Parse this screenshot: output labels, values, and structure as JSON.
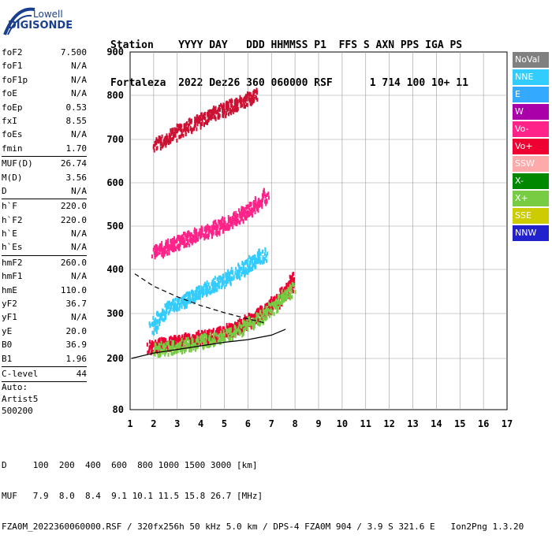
{
  "logo": {
    "brand": "Lowell",
    "name": "DIGISONDE"
  },
  "header": {
    "line1": "Station    YYYY DAY   DDD HHMMSS P1  FFS S AXN PPS IGA PS",
    "line2": "Fortaleza  2022 Dez26 360 060000 RSF      1 714 100 10+ 11"
  },
  "params": [
    {
      "label": "foF2",
      "value": "7.500"
    },
    {
      "label": "foF1",
      "value": "N/A"
    },
    {
      "label": "foF1p",
      "value": "N/A"
    },
    {
      "label": "foE",
      "value": "N/A"
    },
    {
      "label": "foEp",
      "value": "0.53"
    },
    {
      "label": "fxI",
      "value": "8.55"
    },
    {
      "label": "foEs",
      "value": "N/A"
    },
    {
      "label": "fmin",
      "value": "1.70"
    },
    {
      "sep": true
    },
    {
      "label": "MUF(D)",
      "value": "26.74"
    },
    {
      "label": "M(D)",
      "value": "3.56"
    },
    {
      "label": "D",
      "value": "N/A"
    },
    {
      "sep": true
    },
    {
      "label": "h`F",
      "value": "220.0"
    },
    {
      "label": "h`F2",
      "value": "220.0"
    },
    {
      "label": "h`E",
      "value": "N/A"
    },
    {
      "label": "h`Es",
      "value": "N/A"
    },
    {
      "sep": true
    },
    {
      "label": "hmF2",
      "value": "260.0"
    },
    {
      "label": "hmF1",
      "value": "N/A"
    },
    {
      "label": "hmE",
      "value": "110.0"
    },
    {
      "label": "yF2",
      "value": "36.7"
    },
    {
      "label": "yF1",
      "value": "N/A"
    },
    {
      "label": "yE",
      "value": "20.0"
    },
    {
      "label": "B0",
      "value": "36.9"
    },
    {
      "label": "B1",
      "value": "1.96"
    },
    {
      "sep": true
    },
    {
      "label": "C-level",
      "value": "44"
    },
    {
      "sep": true
    }
  ],
  "auto": [
    "Auto:",
    "Artist5",
    "500200"
  ],
  "legend": [
    {
      "label": "NoVal",
      "color": "#808080"
    },
    {
      "label": "NNE",
      "color": "#33ccff"
    },
    {
      "label": "E",
      "color": "#33aaff"
    },
    {
      "label": "W",
      "color": "#aa00aa"
    },
    {
      "label": "Vo-",
      "color": "#ff2288"
    },
    {
      "label": "Vo+",
      "color": "#ee0033"
    },
    {
      "label": "SSW",
      "color": "#ffaaaa"
    },
    {
      "label": "X-",
      "color": "#008800"
    },
    {
      "label": "X+",
      "color": "#77cc44"
    },
    {
      "label": "SSE",
      "color": "#cccc00"
    },
    {
      "label": "NNW",
      "color": "#2222cc"
    }
  ],
  "footer": {
    "line1": "D     100  200  400  600  800 1000 1500 3000 [km]",
    "line2": "MUF   7.9  8.0  8.4  9.1 10.1 11.5 15.8 26.7 [MHz]",
    "line3": "FZA0M_2022360060000.RSF / 320fx256h 50 kHz 5.0 km / DPS-4 FZA0M 904 / 3.9 S 321.6 E   Ion2Png 1.3.20"
  },
  "chart_data": {
    "type": "scatter",
    "x_ticks": [
      "1",
      "2",
      "3",
      "4",
      "5",
      "6",
      "7",
      "8",
      "9",
      "10",
      "11",
      "12",
      "13",
      "14",
      "15",
      "16",
      "17"
    ],
    "y_ticks": [
      "80",
      "200",
      "300",
      "400",
      "500",
      "600",
      "700",
      "800",
      "900"
    ],
    "xlim": [
      1,
      17
    ],
    "y_tick_values": [
      80,
      200,
      300,
      400,
      500,
      600,
      700,
      800,
      900
    ],
    "grid": true,
    "legend_position": "right",
    "traces": [
      {
        "name": "Vo+",
        "color": "#ee0033",
        "points": [
          [
            1.8,
            228
          ],
          [
            2.2,
            232
          ],
          [
            2.6,
            236
          ],
          [
            3.0,
            240
          ],
          [
            3.4,
            244
          ],
          [
            3.8,
            248
          ],
          [
            4.2,
            252
          ],
          [
            4.6,
            256
          ],
          [
            5.0,
            262
          ],
          [
            5.4,
            270
          ],
          [
            5.8,
            280
          ],
          [
            6.2,
            292
          ],
          [
            6.6,
            306
          ],
          [
            7.0,
            322
          ],
          [
            7.4,
            340
          ],
          [
            7.7,
            360
          ],
          [
            7.9,
            385
          ]
        ]
      },
      {
        "name": "Vo-",
        "color": "#ff2288",
        "points": [
          [
            2.0,
            440
          ],
          [
            2.4,
            452
          ],
          [
            2.8,
            462
          ],
          [
            3.2,
            470
          ],
          [
            3.6,
            478
          ],
          [
            4.0,
            486
          ],
          [
            4.4,
            494
          ],
          [
            4.8,
            504
          ],
          [
            5.2,
            514
          ],
          [
            5.6,
            526
          ],
          [
            6.0,
            540
          ],
          [
            6.4,
            556
          ],
          [
            6.8,
            575
          ]
        ]
      },
      {
        "name": "NNE",
        "color": "#33ccff",
        "points": [
          [
            1.9,
            270
          ],
          [
            2.3,
            300
          ],
          [
            2.7,
            320
          ],
          [
            3.1,
            330
          ],
          [
            3.5,
            340
          ],
          [
            3.9,
            350
          ],
          [
            4.3,
            360
          ],
          [
            4.7,
            372
          ],
          [
            5.1,
            384
          ],
          [
            5.5,
            396
          ],
          [
            5.9,
            410
          ],
          [
            6.3,
            424
          ],
          [
            6.7,
            440
          ]
        ]
      },
      {
        "name": "X+",
        "color": "#77cc44",
        "points": [
          [
            2.0,
            222
          ],
          [
            2.6,
            226
          ],
          [
            3.2,
            232
          ],
          [
            3.8,
            238
          ],
          [
            4.4,
            246
          ],
          [
            5.0,
            254
          ],
          [
            5.6,
            266
          ],
          [
            6.2,
            284
          ],
          [
            6.8,
            306
          ],
          [
            7.4,
            334
          ],
          [
            7.9,
            362
          ]
        ]
      },
      {
        "name": "Vo+ upper",
        "color": "#cc1133",
        "points": [
          [
            2.0,
            690
          ],
          [
            2.5,
            705
          ],
          [
            3.0,
            720
          ],
          [
            3.5,
            735
          ],
          [
            4.0,
            748
          ],
          [
            4.5,
            760
          ],
          [
            5.0,
            772
          ],
          [
            5.5,
            784
          ],
          [
            6.0,
            796
          ],
          [
            6.3,
            806
          ]
        ]
      },
      {
        "name": "Trace",
        "color": "#000000",
        "points": [
          [
            1.05,
            200
          ],
          [
            2.0,
            212
          ],
          [
            3.0,
            220
          ],
          [
            4.0,
            228
          ],
          [
            5.0,
            236
          ],
          [
            6.0,
            242
          ],
          [
            7.0,
            252
          ],
          [
            7.6,
            265
          ]
        ]
      },
      {
        "name": "Profile",
        "color": "#000000",
        "points": [
          [
            1.2,
            390
          ],
          [
            2.0,
            362
          ],
          [
            3.0,
            338
          ],
          [
            4.0,
            318
          ],
          [
            5.0,
            302
          ],
          [
            6.0,
            288
          ],
          [
            6.8,
            278
          ]
        ]
      }
    ]
  }
}
